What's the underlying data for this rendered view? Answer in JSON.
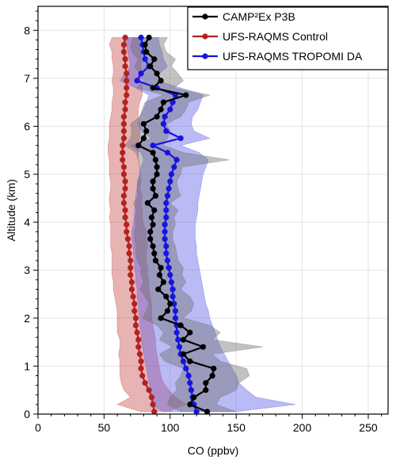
{
  "chart_data": {
    "type": "line",
    "xlabel": "CO (ppbv)",
    "ylabel": "Altitude (km)",
    "xlim": [
      0,
      265
    ],
    "ylim": [
      0,
      8.5
    ],
    "x_ticks": [
      "0",
      "50",
      "100",
      "150",
      "200",
      "250"
    ],
    "y_ticks": [
      "0",
      "1",
      "2",
      "3",
      "4",
      "5",
      "6",
      "7",
      "8"
    ],
    "grid": true,
    "legend_position": "top-right",
    "series": [
      {
        "name": "UFS-RAQMS Control",
        "color": "#b22222",
        "band_color": "#c84a4a",
        "altitude": [
          0.05,
          0.2,
          0.35,
          0.5,
          0.65,
          0.8,
          0.95,
          1.1,
          1.25,
          1.4,
          1.55,
          1.7,
          1.85,
          2.0,
          2.15,
          2.3,
          2.45,
          2.6,
          2.75,
          2.9,
          3.05,
          3.2,
          3.35,
          3.5,
          3.65,
          3.8,
          3.95,
          4.1,
          4.25,
          4.4,
          4.55,
          4.7,
          4.85,
          5.0,
          5.15,
          5.3,
          5.45,
          5.6,
          5.75,
          5.9,
          6.05,
          6.2,
          6.35,
          6.5,
          6.65,
          6.8,
          6.95,
          7.1,
          7.25,
          7.4,
          7.55,
          7.7,
          7.85
        ],
        "co": [
          88,
          87,
          86,
          84,
          81,
          79,
          78,
          78,
          77,
          76,
          76,
          75,
          74,
          74,
          73,
          73,
          72,
          71,
          71,
          70,
          70,
          70,
          69,
          69,
          68,
          67,
          67,
          66,
          66,
          65,
          65,
          66,
          66,
          65,
          65,
          64,
          64,
          64,
          65,
          65,
          65,
          65,
          66,
          66,
          67,
          67,
          67,
          67,
          66,
          66,
          65,
          65,
          66
        ],
        "co_low": [
          78,
          60,
          70,
          65,
          63,
          62,
          62,
          62,
          61,
          62,
          62,
          60,
          60,
          60,
          60,
          59,
          58,
          57,
          57,
          56,
          56,
          56,
          56,
          55,
          55,
          55,
          55,
          54,
          55,
          54,
          54,
          55,
          55,
          54,
          54,
          54,
          53,
          53,
          54,
          54,
          54,
          55,
          56,
          56,
          57,
          57,
          56,
          57,
          57,
          56,
          56,
          54,
          56
        ],
        "co_high": [
          98,
          112,
          104,
          99,
          95,
          93,
          92,
          91,
          90,
          89,
          89,
          88,
          87,
          86,
          86,
          86,
          85,
          84,
          84,
          83,
          83,
          82,
          82,
          83,
          82,
          82,
          80,
          79,
          79,
          78,
          79,
          77,
          78,
          77,
          77,
          76,
          76,
          76,
          77,
          77,
          77,
          76,
          76,
          77,
          79,
          79,
          78,
          79,
          78,
          78,
          78,
          76,
          77
        ]
      },
      {
        "name": "UFS-RAQMS TROPOMI DA",
        "color": "#1515e0",
        "band_color": "#5a5ae6",
        "altitude": [
          0.05,
          0.2,
          0.35,
          0.5,
          0.65,
          0.8,
          0.95,
          1.1,
          1.25,
          1.4,
          1.55,
          1.7,
          1.85,
          2.0,
          2.15,
          2.3,
          2.45,
          2.6,
          2.75,
          2.9,
          3.05,
          3.2,
          3.35,
          3.5,
          3.65,
          3.8,
          3.95,
          4.1,
          4.25,
          4.4,
          4.55,
          4.7,
          4.85,
          5.0,
          5.15,
          5.3,
          5.45,
          5.6,
          5.75,
          5.9,
          6.05,
          6.2,
          6.35,
          6.5,
          6.65,
          6.8,
          6.95,
          7.1,
          7.25,
          7.4,
          7.55,
          7.7,
          7.85
        ],
        "co": [
          120,
          118,
          117,
          116,
          115,
          114,
          112,
          110,
          108,
          107,
          106,
          105,
          105,
          104,
          104,
          103,
          102,
          102,
          101,
          100,
          99,
          98,
          97,
          97,
          96,
          96,
          96,
          97,
          97,
          97,
          98,
          99,
          100,
          101,
          103,
          105,
          98,
          87,
          108,
          97,
          95,
          96,
          100,
          102,
          104,
          90,
          75,
          78,
          84,
          81,
          80,
          79,
          78
        ],
        "co_low": [
          95,
          85,
          87,
          85,
          84,
          83,
          82,
          81,
          80,
          79,
          78,
          78,
          77,
          77,
          76,
          76,
          75,
          75,
          74,
          74,
          73,
          73,
          72,
          72,
          71,
          71,
          72,
          73,
          73,
          74,
          74,
          75,
          76,
          77,
          78,
          80,
          78,
          70,
          86,
          78,
          76,
          77,
          80,
          82,
          84,
          74,
          62,
          66,
          70,
          69,
          68,
          67,
          66
        ],
        "co_high": [
          150,
          195,
          165,
          158,
          152,
          150,
          147,
          144,
          141,
          138,
          136,
          134,
          132,
          130,
          129,
          127,
          126,
          125,
          124,
          123,
          122,
          121,
          120,
          120,
          119,
          119,
          119,
          120,
          121,
          121,
          122,
          123,
          124,
          125,
          127,
          129,
          122,
          108,
          130,
          118,
          116,
          117,
          121,
          123,
          125,
          108,
          90,
          92,
          98,
          95,
          94,
          92,
          91
        ]
      },
      {
        "name": "CAMP²Ex P3B",
        "color": "#000000",
        "band_color": "#6e6e6e",
        "altitude": [
          0.05,
          0.2,
          0.35,
          0.5,
          0.65,
          0.8,
          0.95,
          1.1,
          1.25,
          1.4,
          1.55,
          1.7,
          1.85,
          2.0,
          2.15,
          2.3,
          2.45,
          2.6,
          2.75,
          2.9,
          3.05,
          3.2,
          3.35,
          3.5,
          3.65,
          3.8,
          3.95,
          4.1,
          4.25,
          4.4,
          4.55,
          4.7,
          4.85,
          5.0,
          5.15,
          5.3,
          5.45,
          5.6,
          5.75,
          5.9,
          6.05,
          6.2,
          6.35,
          6.5,
          6.65,
          6.8,
          6.95,
          7.1,
          7.25,
          7.4,
          7.55,
          7.7,
          7.85
        ],
        "co": [
          128,
          115,
          118,
          127,
          127,
          132,
          133,
          115,
          110,
          125,
          110,
          115,
          108,
          93,
          98,
          100,
          97,
          91,
          95,
          92,
          93,
          89,
          88,
          87,
          85,
          85,
          87,
          86,
          88,
          83,
          89,
          87,
          87,
          90,
          90,
          89,
          87,
          76,
          80,
          82,
          80,
          90,
          93,
          95,
          112,
          87,
          93,
          90,
          85,
          88,
          82,
          81,
          84
        ],
        "co_low": [
          108,
          98,
          100,
          105,
          104,
          108,
          110,
          96,
          92,
          102,
          92,
          95,
          90,
          79,
          82,
          84,
          81,
          77,
          80,
          78,
          78,
          75,
          74,
          74,
          73,
          73,
          74,
          73,
          75,
          72,
          76,
          75,
          75,
          77,
          77,
          76,
          74,
          66,
          70,
          71,
          70,
          77,
          79,
          81,
          95,
          75,
          80,
          77,
          73,
          76,
          71,
          70,
          72
        ],
        "co_high": [
          150,
          135,
          138,
          150,
          152,
          160,
          158,
          138,
          132,
          170,
          132,
          138,
          130,
          110,
          116,
          118,
          115,
          108,
          112,
          109,
          110,
          106,
          105,
          104,
          102,
          102,
          104,
          103,
          106,
          100,
          108,
          106,
          105,
          108,
          109,
          145,
          110,
          95,
          98,
          100,
          97,
          108,
          112,
          114,
          130,
          103,
          110,
          106,
          101,
          104,
          97,
          95,
          98
        ]
      }
    ]
  }
}
